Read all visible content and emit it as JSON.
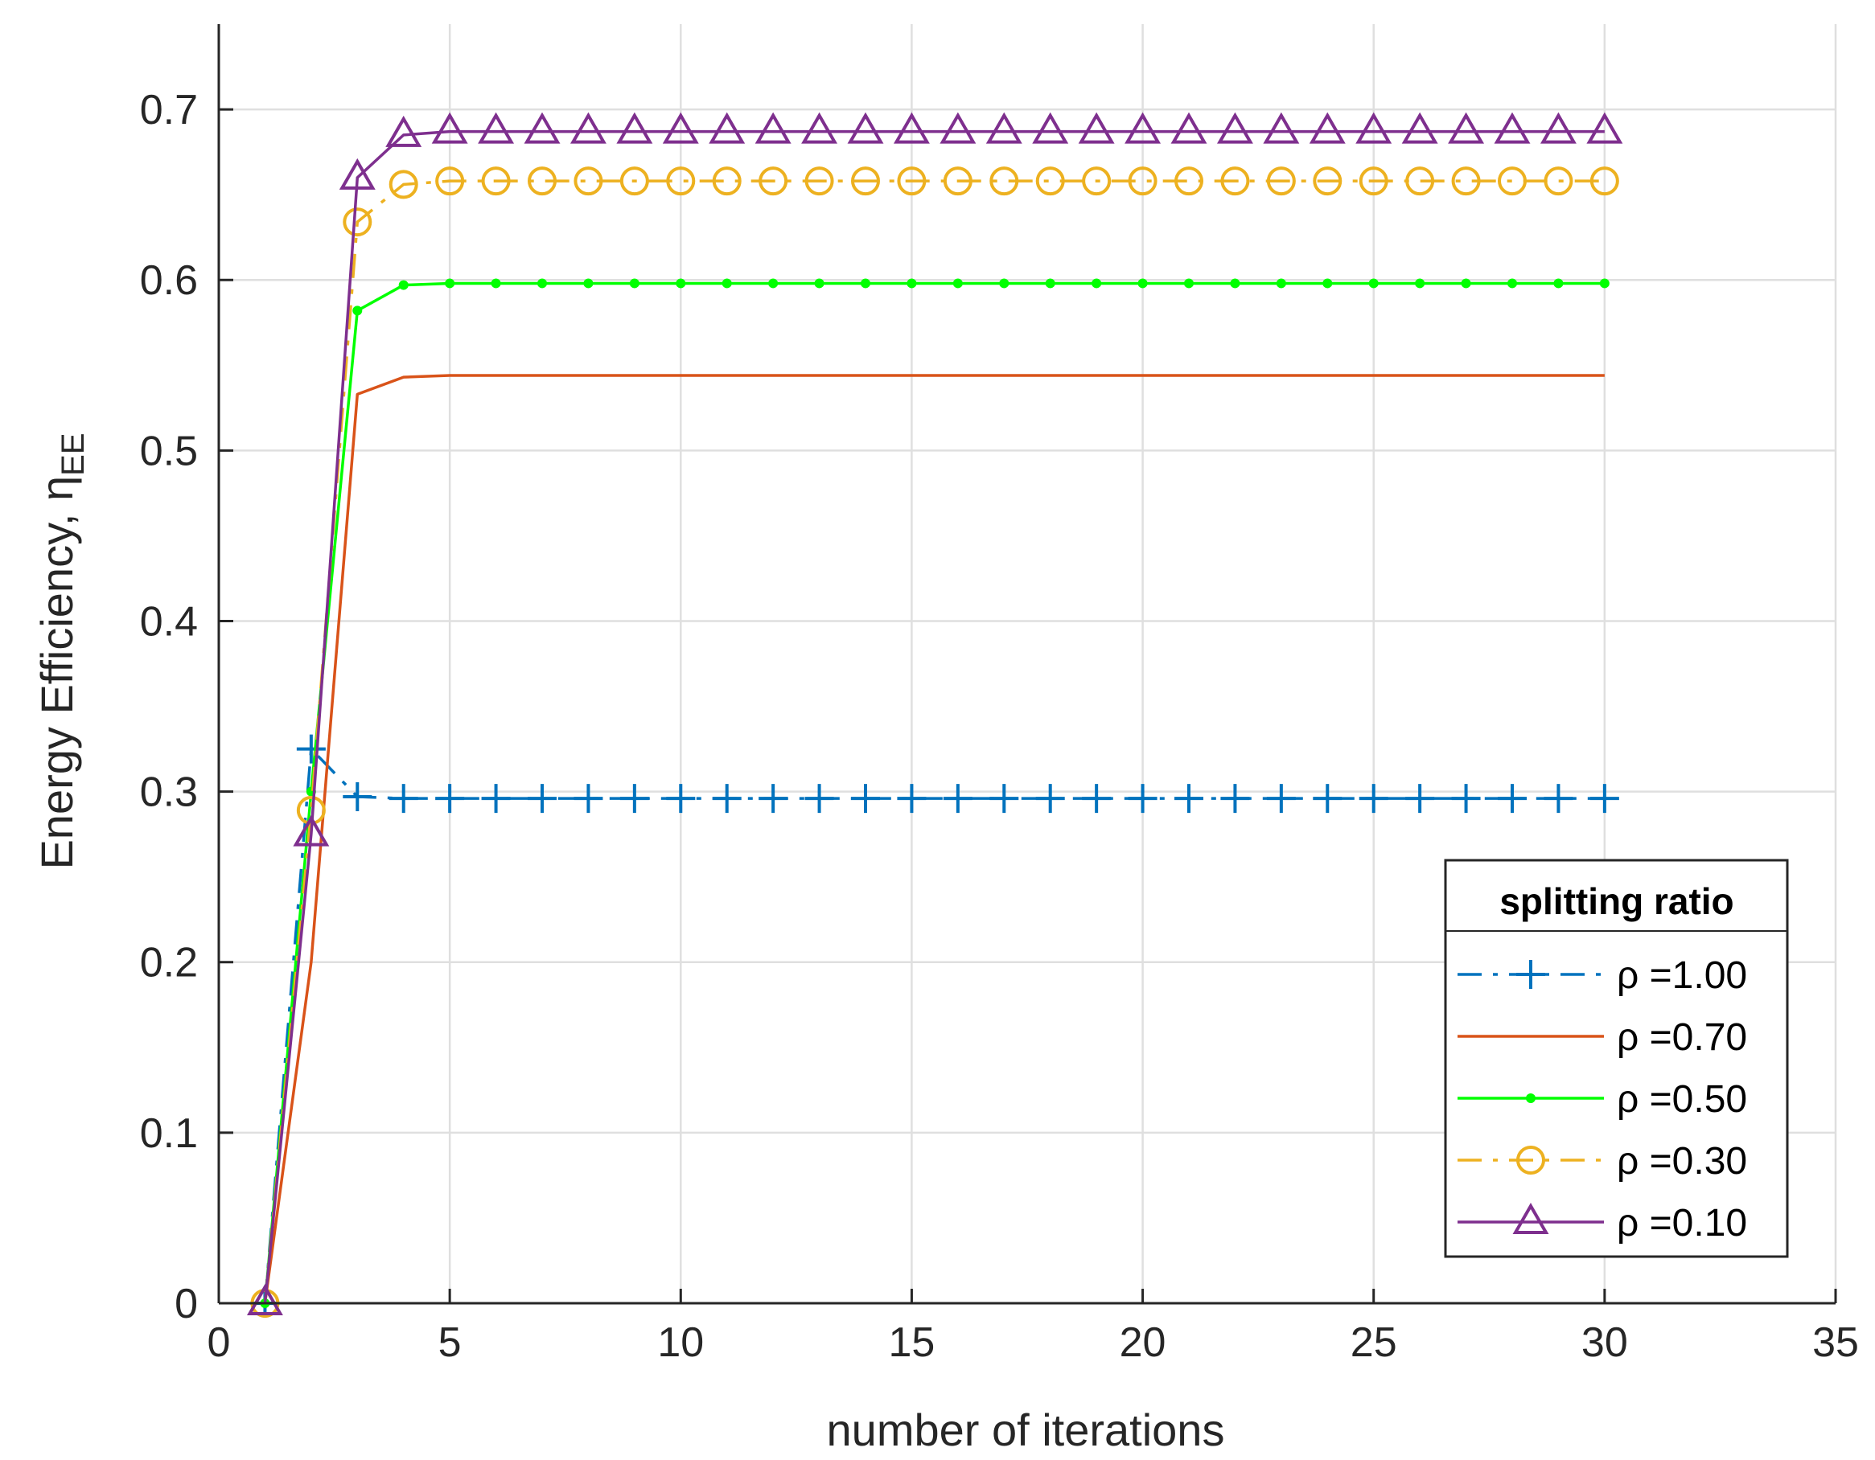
{
  "chart_data": {
    "type": "line",
    "xlabel": "number of iterations",
    "ylabel": "Energy Efficiency, η",
    "ylabel_subscript": "EE",
    "xlim": [
      0,
      35
    ],
    "ylim": [
      0,
      0.75
    ],
    "xticks": [
      "0",
      "5",
      "10",
      "15",
      "20",
      "25",
      "30",
      "35"
    ],
    "yticks": [
      "0",
      "0.1",
      "0.2",
      "0.3",
      "0.4",
      "0.5",
      "0.6",
      "0.7"
    ],
    "grid": true,
    "legend": {
      "title": "splitting ratio",
      "placement": "bottom-right"
    },
    "x": [
      1,
      2,
      3,
      4,
      5,
      6,
      7,
      8,
      9,
      10,
      11,
      12,
      13,
      14,
      15,
      16,
      17,
      18,
      19,
      20,
      21,
      22,
      23,
      24,
      25,
      26,
      27,
      28,
      29,
      30
    ],
    "series": [
      {
        "name": "ρ =1.00",
        "color": "#0072BD",
        "line": "dashdot",
        "marker": "plus",
        "values": [
          0,
          0.325,
          0.297,
          0.296,
          0.296,
          0.296,
          0.296,
          0.296,
          0.296,
          0.296,
          0.296,
          0.296,
          0.296,
          0.296,
          0.296,
          0.296,
          0.296,
          0.296,
          0.296,
          0.296,
          0.296,
          0.296,
          0.296,
          0.296,
          0.296,
          0.296,
          0.296,
          0.296,
          0.296,
          0.296
        ]
      },
      {
        "name": "ρ =0.70",
        "color": "#D95319",
        "line": "solid",
        "marker": "none",
        "values": [
          0,
          0.2,
          0.533,
          0.543,
          0.544,
          0.544,
          0.544,
          0.544,
          0.544,
          0.544,
          0.544,
          0.544,
          0.544,
          0.544,
          0.544,
          0.544,
          0.544,
          0.544,
          0.544,
          0.544,
          0.544,
          0.544,
          0.544,
          0.544,
          0.544,
          0.544,
          0.544,
          0.544,
          0.544,
          0.544
        ]
      },
      {
        "name": "ρ =0.50",
        "color": "#00FF00",
        "line": "solid",
        "marker": "dot",
        "values": [
          0,
          0.3,
          0.582,
          0.597,
          0.598,
          0.598,
          0.598,
          0.598,
          0.598,
          0.598,
          0.598,
          0.598,
          0.598,
          0.598,
          0.598,
          0.598,
          0.598,
          0.598,
          0.598,
          0.598,
          0.598,
          0.598,
          0.598,
          0.598,
          0.598,
          0.598,
          0.598,
          0.598,
          0.598,
          0.598
        ]
      },
      {
        "name": "ρ =0.30",
        "color": "#EDB120",
        "line": "dashdot",
        "marker": "circle",
        "values": [
          0,
          0.289,
          0.634,
          0.656,
          0.658,
          0.658,
          0.658,
          0.658,
          0.658,
          0.658,
          0.658,
          0.658,
          0.658,
          0.658,
          0.658,
          0.658,
          0.658,
          0.658,
          0.658,
          0.658,
          0.658,
          0.658,
          0.658,
          0.658,
          0.658,
          0.658,
          0.658,
          0.658,
          0.658,
          0.658
        ]
      },
      {
        "name": "ρ =0.10",
        "color": "#7E2F8E",
        "line": "solid",
        "marker": "triangle",
        "values": [
          0,
          0.275,
          0.66,
          0.685,
          0.687,
          0.687,
          0.687,
          0.687,
          0.687,
          0.687,
          0.687,
          0.687,
          0.687,
          0.687,
          0.687,
          0.687,
          0.687,
          0.687,
          0.687,
          0.687,
          0.687,
          0.687,
          0.687,
          0.687,
          0.687,
          0.687,
          0.687,
          0.687,
          0.687,
          0.687
        ]
      }
    ]
  }
}
